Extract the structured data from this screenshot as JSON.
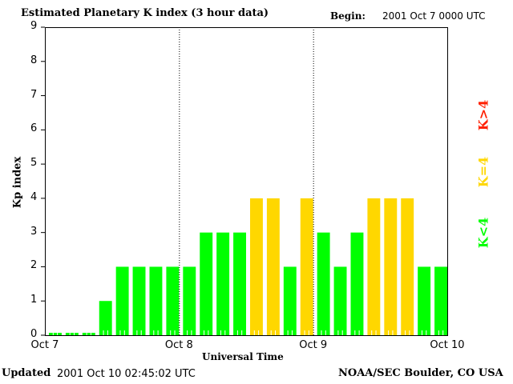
{
  "chart_data": {
    "type": "bar",
    "title": "Estimated Planetary K index (3 hour data)",
    "begin_label": "Begin:",
    "begin_value": "2001 Oct 7 0000 UTC",
    "xlabel": "Universal Time",
    "ylabel": "Kp index",
    "ylim": [
      0,
      9
    ],
    "yticks": [
      "0",
      "1",
      "2",
      "3",
      "4",
      "5",
      "6",
      "7",
      "8",
      "9"
    ],
    "xticks": [
      "Oct 7",
      "Oct 8",
      "Oct 9",
      "Oct 10"
    ],
    "values": [
      0,
      0,
      0,
      1,
      2,
      2,
      2,
      2,
      2,
      3,
      3,
      3,
      4,
      4,
      2,
      4,
      3,
      2,
      3,
      4,
      4,
      4,
      2,
      2
    ],
    "colors": {
      "low": "#00ff00",
      "mid": "#ffd700",
      "high": "#ff2000"
    },
    "legend": [
      {
        "label": "K>4",
        "color": "#ff2000"
      },
      {
        "label": "K=4",
        "color": "#ffd700"
      },
      {
        "label": "K<4",
        "color": "#00ff00"
      }
    ]
  },
  "footer": {
    "updated_label": "Updated",
    "updated_value": "2001 Oct 10 02:45:02 UTC",
    "source": "NOAA/SEC Boulder, CO USA"
  }
}
